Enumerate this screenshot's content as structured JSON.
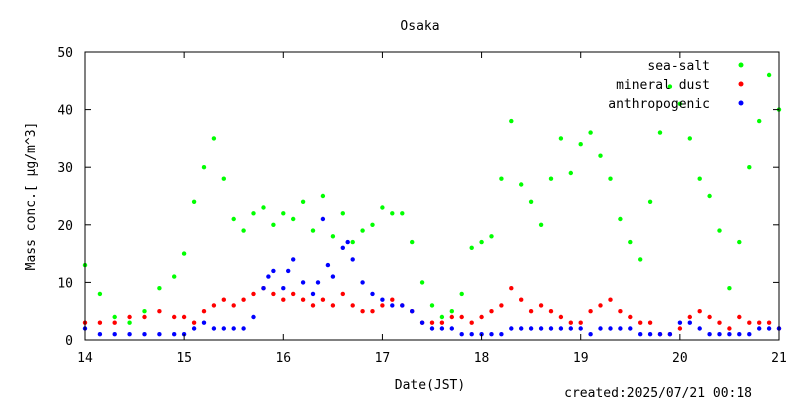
{
  "chart_data": {
    "type": "scatter",
    "title": "Osaka",
    "xlabel": "Date(JST)",
    "ylabel": "Mass conc.[ μg/m^3]",
    "xlim": [
      14,
      21
    ],
    "ylim": [
      0,
      50
    ],
    "x_ticks": [
      "14",
      "15",
      "16",
      "17",
      "18",
      "19",
      "20",
      "21"
    ],
    "y_ticks": [
      "0",
      "10",
      "20",
      "30",
      "40",
      "50"
    ],
    "grid": false,
    "legend_position": "top-right",
    "footer": "created:2025/07/21 00:18",
    "series": [
      {
        "name": "sea-salt",
        "color": "#00ff00",
        "x": [
          14.0,
          14.15,
          14.3,
          14.45,
          14.6,
          14.75,
          14.9,
          15.0,
          15.1,
          15.2,
          15.3,
          15.4,
          15.5,
          15.6,
          15.7,
          15.8,
          15.9,
          16.0,
          16.1,
          16.2,
          16.3,
          16.4,
          16.5,
          16.6,
          16.7,
          16.8,
          16.9,
          17.0,
          17.1,
          17.2,
          17.3,
          17.4,
          17.5,
          17.6,
          17.7,
          17.8,
          17.9,
          18.0,
          18.1,
          18.2,
          18.3,
          18.4,
          18.5,
          18.6,
          18.7,
          18.8,
          18.9,
          19.0,
          19.1,
          19.2,
          19.3,
          19.4,
          19.5,
          19.6,
          19.7,
          19.8,
          19.9,
          20.0,
          20.1,
          20.2,
          20.3,
          20.4,
          20.5,
          20.6,
          20.7,
          20.8,
          20.9,
          21.0
        ],
        "values": [
          13,
          8,
          4,
          3,
          5,
          9,
          11,
          15,
          24,
          30,
          35,
          28,
          21,
          19,
          22,
          23,
          20,
          22,
          21,
          24,
          19,
          25,
          18,
          22,
          17,
          19,
          20,
          23,
          22,
          22,
          17,
          10,
          6,
          4,
          5,
          8,
          16,
          17,
          18,
          28,
          38,
          27,
          24,
          20,
          28,
          35,
          29,
          34,
          36,
          32,
          28,
          21,
          17,
          14,
          24,
          36,
          44,
          41,
          35,
          28,
          25,
          19,
          9,
          17,
          30,
          38,
          46,
          40
        ]
      },
      {
        "name": "mineral dust",
        "color": "#ff0000",
        "x": [
          14.0,
          14.15,
          14.3,
          14.45,
          14.6,
          14.75,
          14.9,
          15.0,
          15.1,
          15.2,
          15.3,
          15.4,
          15.5,
          15.6,
          15.7,
          15.8,
          15.9,
          16.0,
          16.1,
          16.2,
          16.3,
          16.4,
          16.5,
          16.6,
          16.7,
          16.8,
          16.9,
          17.0,
          17.1,
          17.2,
          17.3,
          17.4,
          17.5,
          17.6,
          17.7,
          17.8,
          17.9,
          18.0,
          18.1,
          18.2,
          18.3,
          18.4,
          18.5,
          18.6,
          18.7,
          18.8,
          18.9,
          19.0,
          19.1,
          19.2,
          19.3,
          19.4,
          19.5,
          19.6,
          19.7,
          19.8,
          19.9,
          20.0,
          20.1,
          20.2,
          20.3,
          20.4,
          20.5,
          20.6,
          20.7,
          20.8,
          20.9,
          21.0
        ],
        "values": [
          3,
          3,
          3,
          4,
          4,
          5,
          4,
          4,
          3,
          5,
          6,
          7,
          6,
          7,
          8,
          9,
          8,
          7,
          8,
          7,
          6,
          7,
          6,
          8,
          6,
          5,
          5,
          6,
          7,
          6,
          5,
          3,
          3,
          3,
          4,
          4,
          3,
          4,
          5,
          6,
          9,
          7,
          5,
          6,
          5,
          4,
          3,
          3,
          5,
          6,
          7,
          5,
          4,
          3,
          3,
          1,
          1,
          2,
          4,
          5,
          4,
          3,
          2,
          4,
          3,
          3,
          3,
          2
        ]
      },
      {
        "name": "anthropogenic",
        "color": "#0000ff",
        "x": [
          14.0,
          14.15,
          14.3,
          14.45,
          14.6,
          14.75,
          14.9,
          15.0,
          15.1,
          15.2,
          15.3,
          15.4,
          15.5,
          15.6,
          15.7,
          15.8,
          15.85,
          15.9,
          16.0,
          16.05,
          16.1,
          16.2,
          16.3,
          16.35,
          16.4,
          16.45,
          16.5,
          16.6,
          16.65,
          16.7,
          16.8,
          16.9,
          17.0,
          17.1,
          17.2,
          17.3,
          17.4,
          17.5,
          17.6,
          17.7,
          17.8,
          17.9,
          18.0,
          18.1,
          18.2,
          18.3,
          18.4,
          18.5,
          18.6,
          18.7,
          18.8,
          18.9,
          19.0,
          19.1,
          19.2,
          19.3,
          19.4,
          19.5,
          19.6,
          19.7,
          19.8,
          19.9,
          20.0,
          20.1,
          20.2,
          20.3,
          20.4,
          20.5,
          20.6,
          20.7,
          20.8,
          20.9,
          21.0
        ],
        "values": [
          2,
          1,
          1,
          1,
          1,
          1,
          1,
          1,
          2,
          3,
          2,
          2,
          2,
          2,
          4,
          9,
          11,
          12,
          9,
          12,
          14,
          10,
          8,
          10,
          21,
          13,
          11,
          16,
          17,
          14,
          10,
          8,
          7,
          6,
          6,
          5,
          3,
          2,
          2,
          2,
          1,
          1,
          1,
          1,
          1,
          2,
          2,
          2,
          2,
          2,
          2,
          2,
          2,
          1,
          2,
          2,
          2,
          2,
          1,
          1,
          1,
          1,
          3,
          3,
          2,
          1,
          1,
          1,
          1,
          1,
          2,
          2,
          2
        ]
      }
    ]
  }
}
